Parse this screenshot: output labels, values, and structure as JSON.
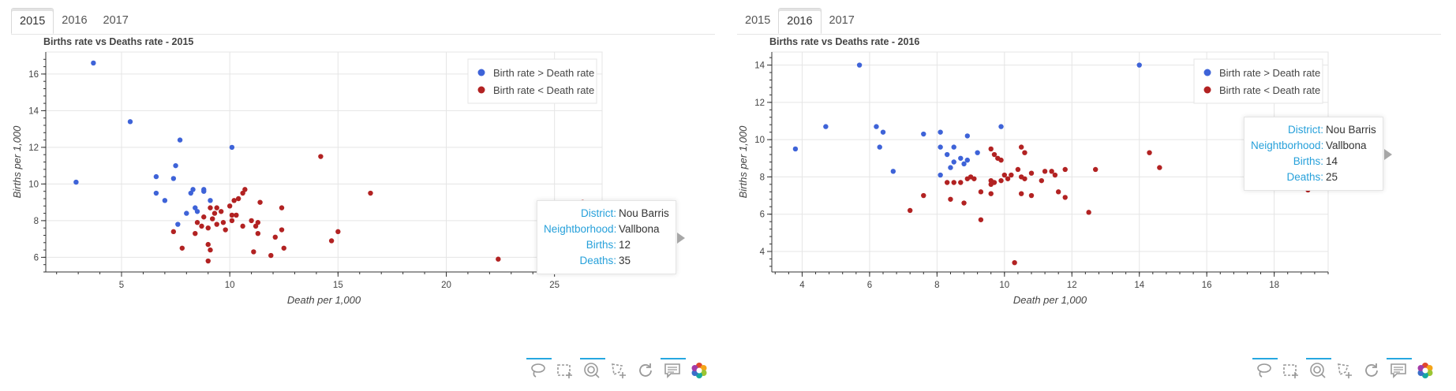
{
  "panels": [
    {
      "tabs": [
        {
          "label": "2015",
          "active": true
        },
        {
          "label": "2016",
          "active": false
        },
        {
          "label": "2017",
          "active": false
        }
      ],
      "tooltip": {
        "rows": [
          {
            "key": "District:",
            "value": "Nou Barris"
          },
          {
            "key": "Neightborhood:",
            "value": "Vallbona"
          },
          {
            "key": "Births:",
            "value": "12"
          },
          {
            "key": "Deaths:",
            "value": "35"
          }
        ]
      },
      "chart_data": {
        "type": "scatter",
        "title": "Births rate vs Deaths rate - 2015",
        "xlabel": "Death per 1,000",
        "ylabel": "Births per 1,000",
        "xlim": [
          1.5,
          27.2
        ],
        "ylim": [
          5.2,
          17.2
        ],
        "xticks": [
          5,
          10,
          15,
          20,
          25
        ],
        "yticks": [
          6,
          8,
          10,
          12,
          14,
          16
        ],
        "grid": true,
        "legend_position": "top-right",
        "series": [
          {
            "name": "Birth rate > Death rate",
            "color": "#3e63d8",
            "points": [
              [
                3.7,
                16.6
              ],
              [
                5.4,
                13.4
              ],
              [
                2.9,
                10.1
              ],
              [
                7.7,
                12.4
              ],
              [
                10.1,
                12.0
              ],
              [
                7.5,
                11.0
              ],
              [
                6.6,
                10.4
              ],
              [
                7.4,
                10.3
              ],
              [
                8.3,
                9.7
              ],
              [
                8.8,
                9.7
              ],
              [
                8.8,
                9.6
              ],
              [
                6.6,
                9.5
              ],
              [
                8.2,
                9.5
              ],
              [
                7.0,
                9.1
              ],
              [
                9.1,
                9.1
              ],
              [
                8.4,
                8.7
              ],
              [
                8.5,
                8.5
              ],
              [
                8.0,
                8.4
              ],
              [
                7.6,
                7.8
              ]
            ]
          },
          {
            "name": "Birth rate < Death rate",
            "color": "#b22222",
            "points": [
              [
                14.2,
                11.5
              ],
              [
                16.5,
                9.5
              ],
              [
                26.3,
                9.0
              ],
              [
                10.7,
                9.7
              ],
              [
                10.6,
                9.5
              ],
              [
                10.4,
                9.2
              ],
              [
                10.2,
                9.1
              ],
              [
                11.4,
                9.0
              ],
              [
                10.0,
                8.8
              ],
              [
                9.1,
                8.7
              ],
              [
                9.4,
                8.7
              ],
              [
                12.4,
                8.7
              ],
              [
                9.6,
                8.5
              ],
              [
                9.3,
                8.4
              ],
              [
                10.1,
                8.3
              ],
              [
                10.3,
                8.3
              ],
              [
                8.8,
                8.2
              ],
              [
                9.2,
                8.1
              ],
              [
                10.1,
                8.0
              ],
              [
                11.0,
                8.0
              ],
              [
                9.7,
                7.9
              ],
              [
                11.3,
                7.9
              ],
              [
                8.5,
                7.9
              ],
              [
                9.4,
                7.8
              ],
              [
                10.6,
                7.7
              ],
              [
                8.7,
                7.7
              ],
              [
                11.2,
                7.7
              ],
              [
                9.0,
                7.6
              ],
              [
                12.4,
                7.5
              ],
              [
                9.8,
                7.5
              ],
              [
                15.0,
                7.4
              ],
              [
                7.4,
                7.4
              ],
              [
                8.4,
                7.3
              ],
              [
                11.3,
                7.3
              ],
              [
                12.1,
                7.1
              ],
              [
                14.7,
                6.9
              ],
              [
                9.0,
                6.7
              ],
              [
                7.8,
                6.5
              ],
              [
                12.5,
                6.5
              ],
              [
                9.1,
                6.4
              ],
              [
                11.1,
                6.3
              ],
              [
                11.9,
                6.1
              ],
              [
                22.4,
                5.9
              ],
              [
                9.0,
                5.8
              ]
            ]
          }
        ]
      }
    },
    {
      "tabs": [
        {
          "label": "2015",
          "active": false
        },
        {
          "label": "2016",
          "active": true
        },
        {
          "label": "2017",
          "active": false
        }
      ],
      "tooltip": {
        "rows": [
          {
            "key": "District:",
            "value": "Nou Barris"
          },
          {
            "key": "Neightborhood:",
            "value": "Vallbona"
          },
          {
            "key": "Births:",
            "value": "14"
          },
          {
            "key": "Deaths:",
            "value": "25"
          }
        ]
      },
      "chart_data": {
        "type": "scatter",
        "title": "Births rate vs Deaths rate - 2016",
        "xlabel": "Death per 1,000",
        "ylabel": "Births per 1,000",
        "xlim": [
          3.1,
          19.6
        ],
        "ylim": [
          2.9,
          14.7
        ],
        "xticks": [
          4,
          6,
          8,
          10,
          12,
          14,
          16,
          18
        ],
        "yticks": [
          4,
          6,
          8,
          10,
          12,
          14
        ],
        "grid": true,
        "legend_position": "top-right",
        "series": [
          {
            "name": "Birth rate > Death rate",
            "color": "#3e63d8",
            "points": [
              [
                5.7,
                14.0
              ],
              [
                14.0,
                14.0
              ],
              [
                4.7,
                10.7
              ],
              [
                6.2,
                10.7
              ],
              [
                9.9,
                10.7
              ],
              [
                6.4,
                10.4
              ],
              [
                7.6,
                10.3
              ],
              [
                8.1,
                10.4
              ],
              [
                8.9,
                10.2
              ],
              [
                3.8,
                9.5
              ],
              [
                6.3,
                9.6
              ],
              [
                8.1,
                9.6
              ],
              [
                8.5,
                9.6
              ],
              [
                8.3,
                9.2
              ],
              [
                9.2,
                9.3
              ],
              [
                8.7,
                9.0
              ],
              [
                8.9,
                8.9
              ],
              [
                8.5,
                8.8
              ],
              [
                8.8,
                8.7
              ],
              [
                8.4,
                8.5
              ],
              [
                6.7,
                8.3
              ],
              [
                8.1,
                8.1
              ]
            ]
          },
          {
            "name": "Birth rate < Death rate",
            "color": "#b22222",
            "points": [
              [
                18.5,
                10.3
              ],
              [
                9.6,
                9.5
              ],
              [
                10.5,
                9.6
              ],
              [
                10.6,
                9.3
              ],
              [
                14.3,
                9.3
              ],
              [
                9.7,
                9.2
              ],
              [
                9.8,
                9.0
              ],
              [
                9.9,
                8.9
              ],
              [
                14.6,
                8.5
              ],
              [
                10.4,
                8.4
              ],
              [
                11.8,
                8.4
              ],
              [
                12.7,
                8.4
              ],
              [
                11.2,
                8.3
              ],
              [
                11.4,
                8.3
              ],
              [
                10.8,
                8.2
              ],
              [
                11.5,
                8.1
              ],
              [
                10.0,
                8.1
              ],
              [
                10.2,
                8.1
              ],
              [
                10.5,
                8.0
              ],
              [
                9.0,
                8.0
              ],
              [
                8.9,
                7.9
              ],
              [
                9.6,
                7.8
              ],
              [
                10.6,
                7.9
              ],
              [
                9.1,
                7.9
              ],
              [
                10.1,
                7.9
              ],
              [
                9.9,
                7.8
              ],
              [
                11.1,
                7.8
              ],
              [
                8.3,
                7.7
              ],
              [
                8.5,
                7.7
              ],
              [
                8.7,
                7.7
              ],
              [
                9.7,
                7.7
              ],
              [
                9.6,
                7.6
              ],
              [
                9.3,
                7.2
              ],
              [
                10.5,
                7.1
              ],
              [
                11.6,
                7.2
              ],
              [
                9.6,
                7.1
              ],
              [
                7.6,
                7.0
              ],
              [
                10.8,
                7.0
              ],
              [
                11.8,
                6.9
              ],
              [
                8.4,
                6.8
              ],
              [
                8.8,
                6.6
              ],
              [
                19.0,
                7.3
              ],
              [
                7.2,
                6.2
              ],
              [
                12.5,
                6.1
              ],
              [
                9.3,
                5.7
              ],
              [
                10.3,
                3.4
              ]
            ]
          }
        ]
      }
    }
  ]
}
